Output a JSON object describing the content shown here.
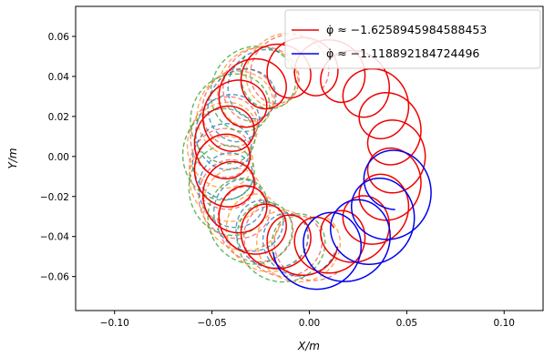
{
  "chart_data": {
    "type": "line",
    "xlabel": "X/m",
    "ylabel": "Y/m",
    "xlim": [
      -0.12,
      0.12
    ],
    "ylim": [
      -0.077,
      0.075
    ],
    "x_ticks": [
      {
        "value": -0.1,
        "label": "−0.10"
      },
      {
        "value": -0.05,
        "label": "−0.05"
      },
      {
        "value": 0.0,
        "label": "0.00"
      },
      {
        "value": 0.05,
        "label": "0.05"
      },
      {
        "value": 0.1,
        "label": "0.10"
      }
    ],
    "y_ticks": [
      {
        "value": 0.06,
        "label": "0.06"
      },
      {
        "value": 0.04,
        "label": "0.04"
      },
      {
        "value": 0.02,
        "label": "0.02"
      },
      {
        "value": 0.0,
        "label": "0.00"
      },
      {
        "value": -0.02,
        "label": "−0.02"
      },
      {
        "value": -0.04,
        "label": "−0.04"
      },
      {
        "value": -0.06,
        "label": "−0.06"
      }
    ],
    "grid": false,
    "legend_position": "top-right",
    "series": [
      {
        "name": "φ̇ ≈ −1.6258945984588453",
        "color": "#ee0000",
        "style": "solid",
        "center_radius": 0.045,
        "loop_amplitude": 0.0145,
        "loop_frequency": 20,
        "phase_deg": 0,
        "start_angle_deg": -88,
        "end_angle_deg": 270
      },
      {
        "name": "φ̇ ≈ −1.118892184724496",
        "color": "#0000ee",
        "style": "solid",
        "center_radius": 0.048,
        "loop_amplitude": 0.0185,
        "loop_frequency": 19,
        "phase_deg": 90,
        "start_angle_deg": -90,
        "end_angle_deg": -10
      }
    ],
    "extra_dashed_curves": [
      {
        "color": "#ee5555",
        "center_radius": 0.046,
        "loop_amplitude": 0.016,
        "loop_frequency": 18,
        "phase_deg": 40,
        "start_angle_deg": 95,
        "end_angle_deg": 275
      },
      {
        "color": "#ff8c1a",
        "center_radius": 0.046,
        "loop_amplitude": 0.017,
        "loop_frequency": 17,
        "phase_deg": 120,
        "start_angle_deg": 100,
        "end_angle_deg": 272
      },
      {
        "color": "#2ca02c",
        "center_radius": 0.047,
        "loop_amplitude": 0.018,
        "loop_frequency": 16,
        "phase_deg": 200,
        "start_angle_deg": 110,
        "end_angle_deg": 270
      },
      {
        "color": "#1f77b4",
        "center_radius": 0.045,
        "loop_amplitude": 0.015,
        "loop_frequency": 19,
        "phase_deg": 300,
        "start_angle_deg": 120,
        "end_angle_deg": 268
      }
    ]
  }
}
